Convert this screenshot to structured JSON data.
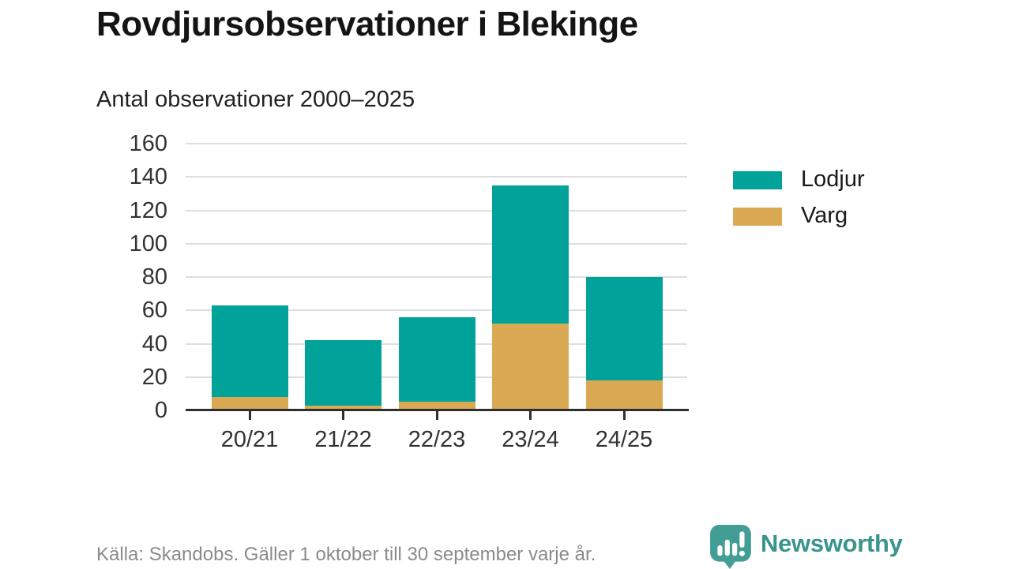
{
  "header": {
    "title": "Rovdjursobservationer i Blekinge",
    "subtitle": "Antal observationer 2000–2025"
  },
  "chart_data": {
    "type": "bar",
    "stacked": true,
    "title": "Antal observationer 2000–2025",
    "categories": [
      "20/21",
      "21/22",
      "22/23",
      "23/24",
      "24/25"
    ],
    "series": [
      {
        "name": "Varg",
        "color": "#d9a953",
        "values": [
          8,
          3,
          5,
          52,
          18
        ]
      },
      {
        "name": "Lodjur",
        "color": "#00a29a",
        "values": [
          55,
          39,
          51,
          83,
          62
        ]
      }
    ],
    "stack_order": "bottom_to_top",
    "totals": [
      63,
      42,
      56,
      135,
      80
    ],
    "xlabel": "",
    "ylabel": "",
    "ylim": [
      0,
      160
    ],
    "yticks": [
      0,
      20,
      40,
      60,
      80,
      100,
      120,
      140,
      160
    ],
    "grid": true,
    "legend_position": "right"
  },
  "legend": {
    "items": [
      {
        "label": "Lodjur",
        "color": "#00a29a"
      },
      {
        "label": "Varg",
        "color": "#d9a953"
      }
    ]
  },
  "footer": {
    "source": "Källa: Skandobs. Gäller 1 oktober till 30 september varje år.",
    "brand": "Newsworthy"
  },
  "colors": {
    "lodjur": "#00a29a",
    "varg": "#d9a953",
    "axis": "#2e2e2e",
    "gridline": "#dedede",
    "brand_teal": "#38948c",
    "brand_icon_teal": "#429e95"
  }
}
